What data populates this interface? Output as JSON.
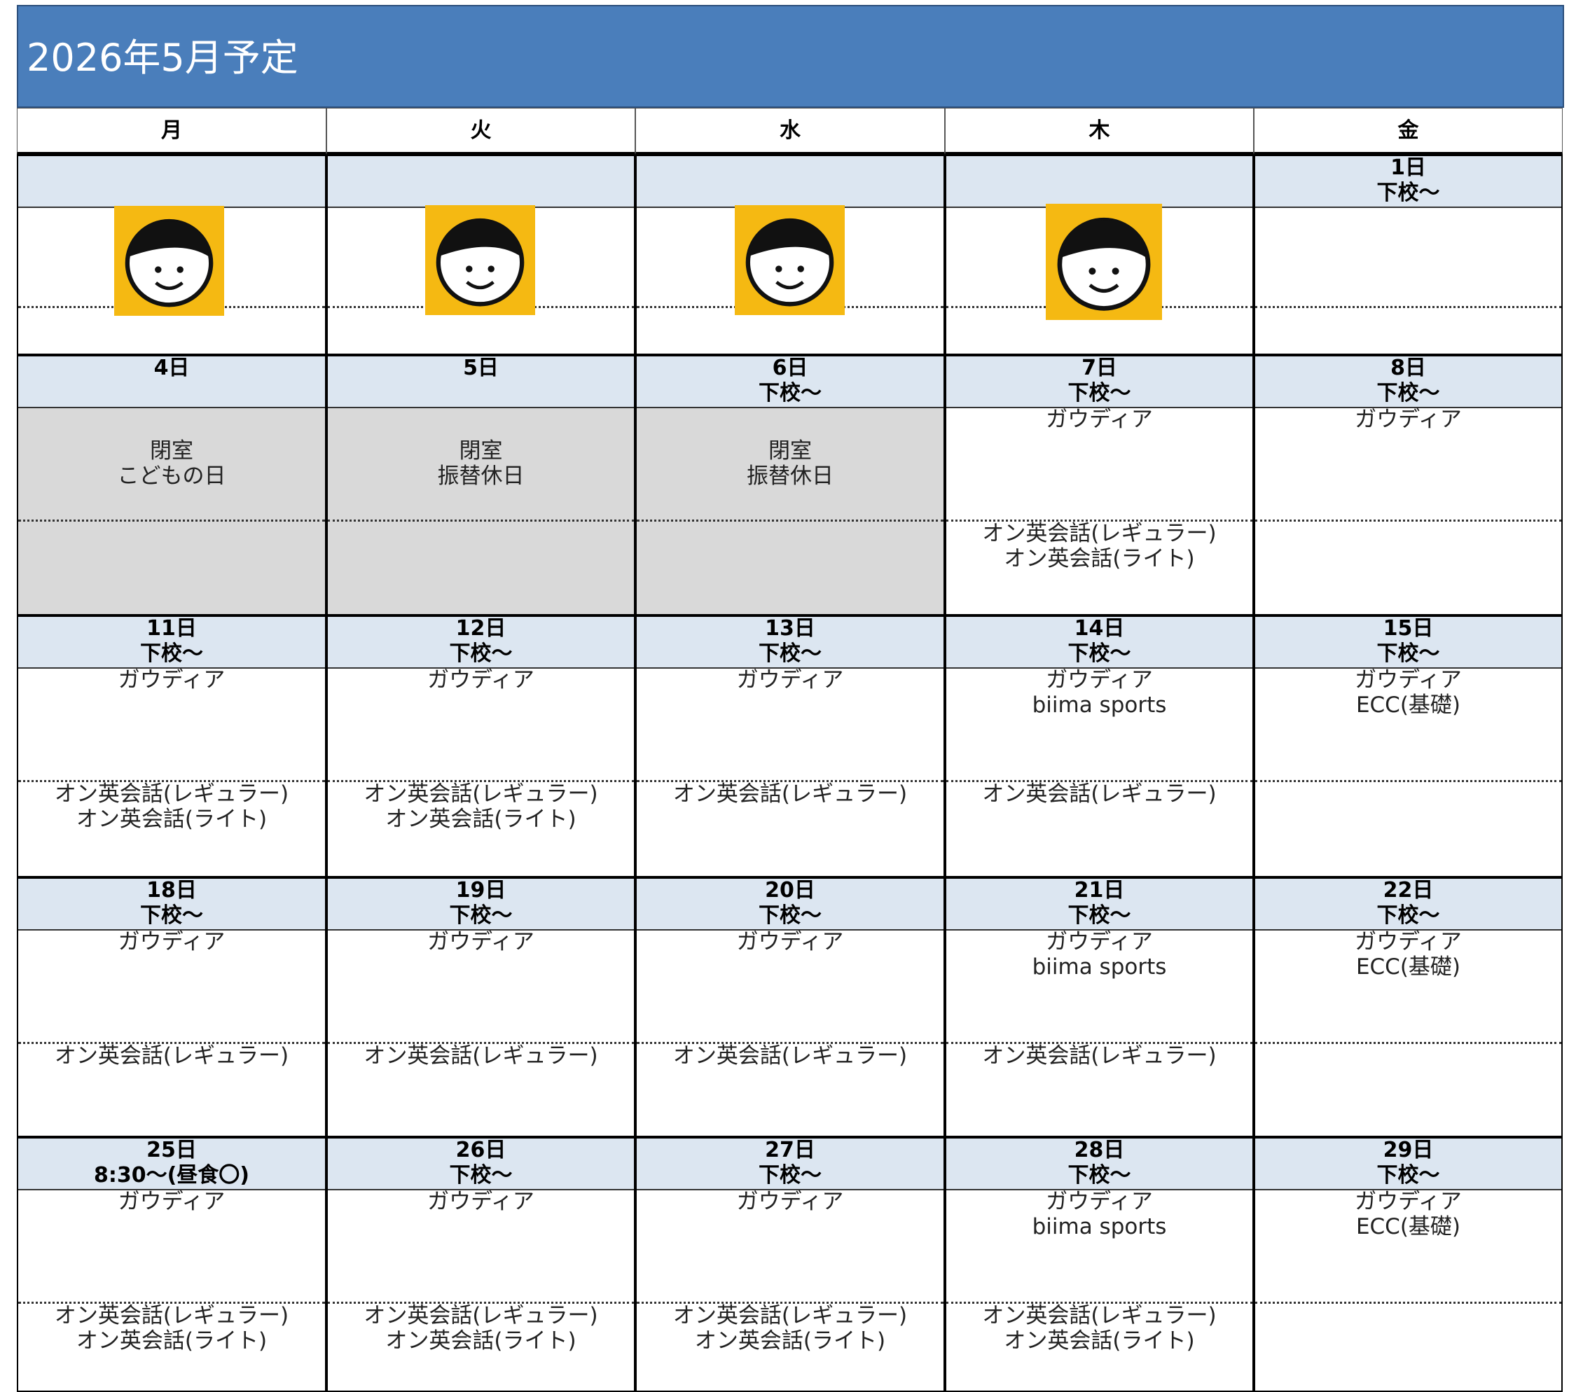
{
  "title": "2026年5月予定",
  "weekdays": [
    "月",
    "火",
    "水",
    "木",
    "金"
  ],
  "weeks": [
    {
      "days": [
        {},
        {},
        {},
        {},
        {
          "date": "1日",
          "time": "下校～"
        }
      ]
    },
    {
      "days": [
        {
          "date": "4日",
          "closed": true,
          "top": [
            "閉室",
            "こどもの日"
          ]
        },
        {
          "date": "5日",
          "closed": true,
          "top": [
            "閉室",
            "振替休日"
          ]
        },
        {
          "date": "6日",
          "time": "下校～",
          "closed": true,
          "top": [
            "閉室",
            "振替休日"
          ]
        },
        {
          "date": "7日",
          "time": "下校～",
          "top": [
            "ガウディア"
          ],
          "bottom": [
            "オン英会話(レギュラー)",
            "オン英会話(ライト)"
          ]
        },
        {
          "date": "8日",
          "time": "下校～",
          "top": [
            "ガウディア"
          ]
        }
      ]
    },
    {
      "days": [
        {
          "date": "11日",
          "time": "下校～",
          "top": [
            "ガウディア"
          ],
          "bottom": [
            "オン英会話(レギュラー)",
            "オン英会話(ライト)"
          ]
        },
        {
          "date": "12日",
          "time": "下校～",
          "top": [
            "ガウディア"
          ],
          "bottom": [
            "オン英会話(レギュラー)",
            "オン英会話(ライト)"
          ]
        },
        {
          "date": "13日",
          "time": "下校～",
          "top": [
            "ガウディア"
          ],
          "bottom": [
            "オン英会話(レギュラー)"
          ]
        },
        {
          "date": "14日",
          "time": "下校～",
          "top": [
            "ガウディア",
            "biima sports"
          ],
          "bottom": [
            "オン英会話(レギュラー)"
          ]
        },
        {
          "date": "15日",
          "time": "下校～",
          "top": [
            "ガウディア",
            "ECC(基礎)"
          ]
        }
      ]
    },
    {
      "days": [
        {
          "date": "18日",
          "time": "下校～",
          "top": [
            "ガウディア"
          ],
          "bottom": [
            "オン英会話(レギュラー)"
          ]
        },
        {
          "date": "19日",
          "time": "下校～",
          "top": [
            "ガウディア"
          ],
          "bottom": [
            "オン英会話(レギュラー)"
          ]
        },
        {
          "date": "20日",
          "time": "下校～",
          "top": [
            "ガウディア"
          ],
          "bottom": [
            "オン英会話(レギュラー)"
          ]
        },
        {
          "date": "21日",
          "time": "下校～",
          "top": [
            "ガウディア",
            "biima sports"
          ],
          "bottom": [
            "オン英会話(レギュラー)"
          ]
        },
        {
          "date": "22日",
          "time": "下校～",
          "top": [
            "ガウディア",
            "ECC(基礎)"
          ]
        }
      ]
    },
    {
      "days": [
        {
          "date": "25日",
          "time": "8:30～(昼食〇)",
          "top": [
            "ガウディア"
          ],
          "bottom": [
            "オン英会話(レギュラー)",
            "オン英会話(ライト)"
          ]
        },
        {
          "date": "26日",
          "time": "下校～",
          "top": [
            "ガウディア"
          ],
          "bottom": [
            "オン英会話(レギュラー)",
            "オン英会話(ライト)"
          ]
        },
        {
          "date": "27日",
          "time": "下校～",
          "top": [
            "ガウディア"
          ],
          "bottom": [
            "オン英会話(レギュラー)",
            "オン英会話(ライト)"
          ]
        },
        {
          "date": "28日",
          "time": "下校～",
          "top": [
            "ガウディア",
            "biima sports"
          ],
          "bottom": [
            "オン英会話(レギュラー)",
            "オン英会話(ライト)"
          ]
        },
        {
          "date": "29日",
          "time": "下校～",
          "top": [
            "ガウディア",
            "ECC(基礎)"
          ]
        }
      ]
    }
  ]
}
